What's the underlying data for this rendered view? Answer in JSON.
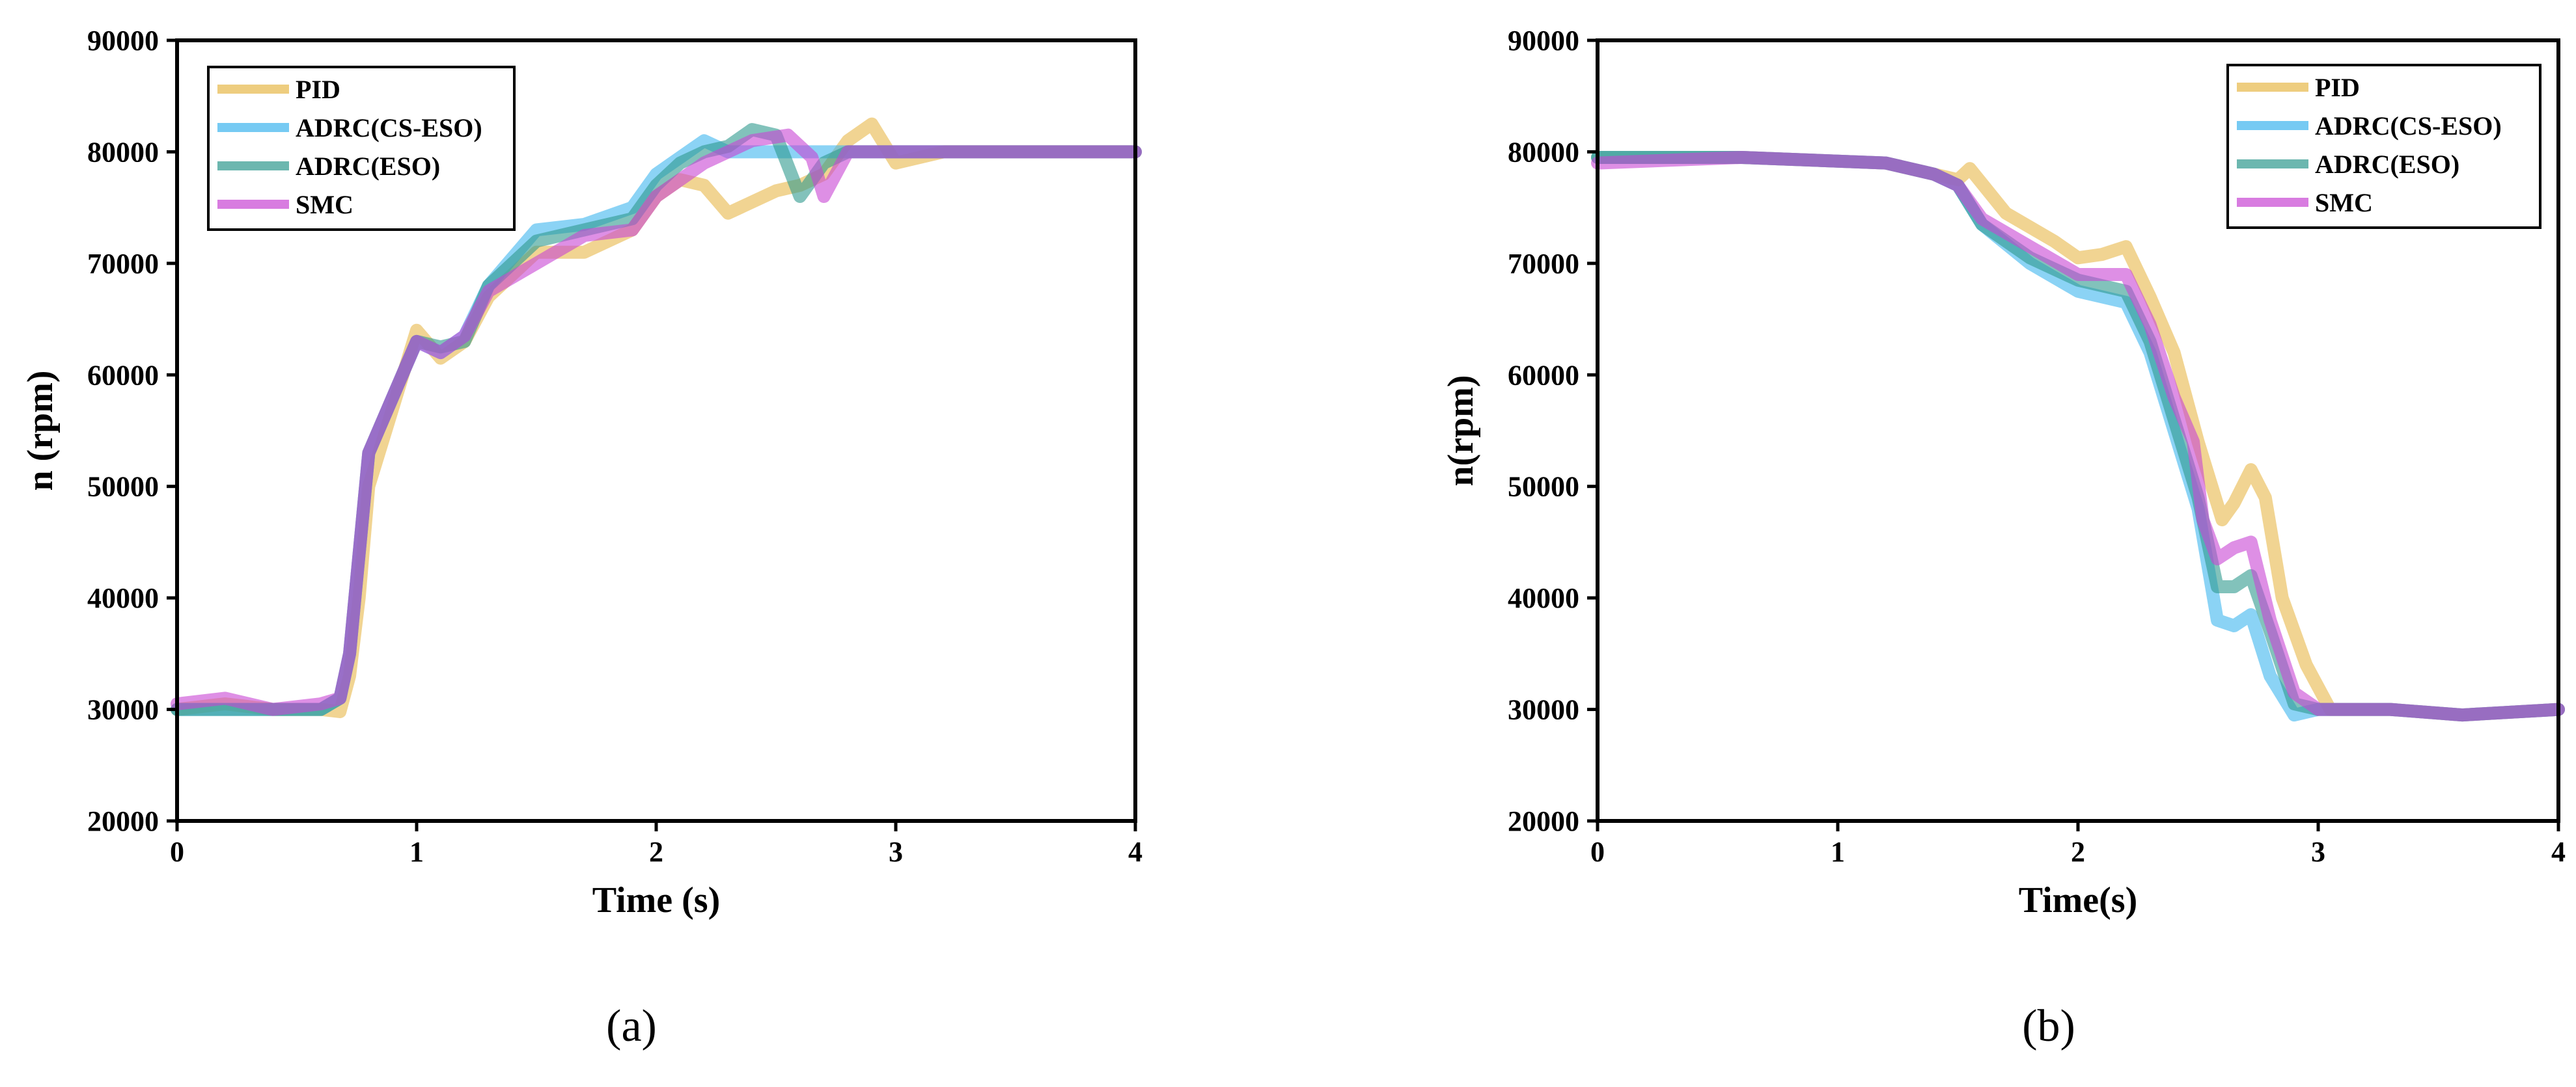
{
  "colors": {
    "PID": "#E8B84A",
    "ADRC(CS-ESO)": "#3DB5EE",
    "ADRC(ESO)": "#2E9A8E",
    "SMC": "#C845D4"
  },
  "chart_data": [
    {
      "type": "line",
      "panel_label": "(a)",
      "xlabel": "Time (s)",
      "ylabel": "n (rpm)",
      "xlim": [
        0,
        4
      ],
      "ylim": [
        20000,
        90000
      ],
      "xticks": [
        "0",
        "1",
        "2",
        "3",
        "4"
      ],
      "yticks": [
        "20000",
        "30000",
        "40000",
        "50000",
        "60000",
        "70000",
        "80000",
        "90000"
      ],
      "legend_position": "top-left",
      "grid": false,
      "series": [
        {
          "name": "PID",
          "x": [
            0,
            0.2,
            0.4,
            0.6,
            0.68,
            0.72,
            0.76,
            0.8,
            0.9,
            1.0,
            1.1,
            1.2,
            1.3,
            1.5,
            1.7,
            1.9,
            2.0,
            2.1,
            2.2,
            2.3,
            2.4,
            2.5,
            2.6,
            2.7,
            2.8,
            2.9,
            3.0,
            3.2,
            3.5,
            4.0
          ],
          "y": [
            30000,
            30500,
            30000,
            30000,
            29800,
            33000,
            40000,
            50000,
            57000,
            64000,
            61500,
            63000,
            67000,
            71000,
            71000,
            73000,
            76000,
            77500,
            77000,
            74500,
            75500,
            76500,
            77000,
            78000,
            81000,
            82500,
            79000,
            80000,
            80000,
            80000
          ]
        },
        {
          "name": "ADRC(CS-ESO)",
          "x": [
            0,
            0.2,
            0.4,
            0.6,
            0.68,
            0.72,
            0.76,
            0.8,
            0.9,
            1.0,
            1.1,
            1.2,
            1.3,
            1.5,
            1.7,
            1.9,
            2.0,
            2.1,
            2.2,
            2.3,
            2.4,
            2.6,
            2.8,
            3.0,
            3.5,
            4.0
          ],
          "y": [
            30000,
            30000,
            30000,
            30000,
            31000,
            35000,
            44000,
            53000,
            58000,
            63000,
            62000,
            63500,
            68000,
            73000,
            73500,
            75000,
            78000,
            79500,
            81000,
            80000,
            80000,
            80000,
            80000,
            80000,
            80000,
            80000
          ]
        },
        {
          "name": "ADRC(ESO)",
          "x": [
            0,
            0.2,
            0.4,
            0.6,
            0.68,
            0.72,
            0.76,
            0.8,
            0.9,
            1.0,
            1.1,
            1.2,
            1.3,
            1.5,
            1.7,
            1.9,
            2.0,
            2.1,
            2.2,
            2.3,
            2.4,
            2.5,
            2.6,
            2.7,
            2.8,
            3.0,
            3.5,
            4.0
          ],
          "y": [
            30000,
            30000,
            30000,
            30000,
            31000,
            35000,
            44000,
            53000,
            58000,
            63000,
            62500,
            63000,
            68000,
            72000,
            73000,
            74000,
            77000,
            79000,
            80000,
            80500,
            82000,
            81500,
            76000,
            79000,
            80000,
            80000,
            80000,
            80000
          ]
        },
        {
          "name": "SMC",
          "x": [
            0,
            0.2,
            0.4,
            0.6,
            0.68,
            0.72,
            0.76,
            0.8,
            0.9,
            1.0,
            1.1,
            1.2,
            1.3,
            1.5,
            1.7,
            1.9,
            2.0,
            2.1,
            2.2,
            2.3,
            2.4,
            2.55,
            2.65,
            2.7,
            2.8,
            3.0,
            3.5,
            4.0
          ],
          "y": [
            30500,
            31000,
            30000,
            30500,
            31000,
            35000,
            44000,
            53000,
            58000,
            63000,
            62000,
            63500,
            67500,
            70000,
            72500,
            73000,
            76000,
            77500,
            79000,
            80000,
            81000,
            81500,
            79500,
            76000,
            80000,
            80000,
            80000,
            80000
          ]
        }
      ]
    },
    {
      "type": "line",
      "panel_label": "(b)",
      "xlabel": "Time(s)",
      "ylabel": "n(rpm)",
      "xlim": [
        0,
        4
      ],
      "ylim": [
        20000,
        90000
      ],
      "xticks": [
        "0",
        "1",
        "2",
        "3",
        "4"
      ],
      "yticks": [
        "20000",
        "30000",
        "40000",
        "50000",
        "60000",
        "70000",
        "80000",
        "90000"
      ],
      "legend_position": "top-right",
      "grid": false,
      "series": [
        {
          "name": "PID",
          "x": [
            0,
            0.6,
            1.2,
            1.4,
            1.5,
            1.55,
            1.7,
            1.9,
            2.0,
            2.1,
            2.2,
            2.3,
            2.4,
            2.5,
            2.6,
            2.65,
            2.72,
            2.78,
            2.85,
            2.95,
            3.05,
            3.3,
            3.6,
            4.0
          ],
          "y": [
            79500,
            79500,
            79000,
            78000,
            77500,
            78500,
            74500,
            72000,
            70500,
            70800,
            71500,
            67000,
            62000,
            54000,
            47000,
            48500,
            51500,
            49000,
            40000,
            34000,
            30000,
            30000,
            29500,
            30000
          ]
        },
        {
          "name": "ADRC(CS-ESO)",
          "x": [
            0,
            0.6,
            1.2,
            1.4,
            1.5,
            1.6,
            1.8,
            2.0,
            2.2,
            2.3,
            2.4,
            2.5,
            2.58,
            2.65,
            2.72,
            2.8,
            2.9,
            3.0,
            3.3,
            3.6,
            4.0
          ],
          "y": [
            79500,
            79500,
            79000,
            78000,
            77000,
            73500,
            70000,
            67500,
            66500,
            62000,
            55000,
            48000,
            38000,
            37500,
            38500,
            33000,
            29500,
            30000,
            30000,
            29500,
            30000
          ]
        },
        {
          "name": "ADRC(ESO)",
          "x": [
            0,
            0.6,
            1.2,
            1.4,
            1.5,
            1.6,
            1.8,
            2.0,
            2.2,
            2.3,
            2.4,
            2.5,
            2.58,
            2.65,
            2.72,
            2.8,
            2.9,
            3.0,
            3.3,
            3.6,
            4.0
          ],
          "y": [
            79500,
            79500,
            79000,
            78000,
            77000,
            73500,
            70500,
            68500,
            67500,
            63000,
            56000,
            49000,
            41000,
            41000,
            42000,
            37000,
            30500,
            30000,
            30000,
            29500,
            30000
          ]
        },
        {
          "name": "SMC",
          "x": [
            0,
            0.6,
            1.2,
            1.4,
            1.5,
            1.6,
            1.8,
            2.0,
            2.2,
            2.3,
            2.4,
            2.48,
            2.52,
            2.58,
            2.65,
            2.72,
            2.8,
            2.9,
            3.0,
            3.3,
            3.6,
            4.0
          ],
          "y": [
            79000,
            79500,
            79000,
            78000,
            77000,
            74000,
            71500,
            69000,
            69000,
            64500,
            58000,
            54000,
            47000,
            43500,
            44500,
            45000,
            38000,
            31500,
            30000,
            30000,
            29500,
            30000
          ]
        }
      ]
    }
  ]
}
